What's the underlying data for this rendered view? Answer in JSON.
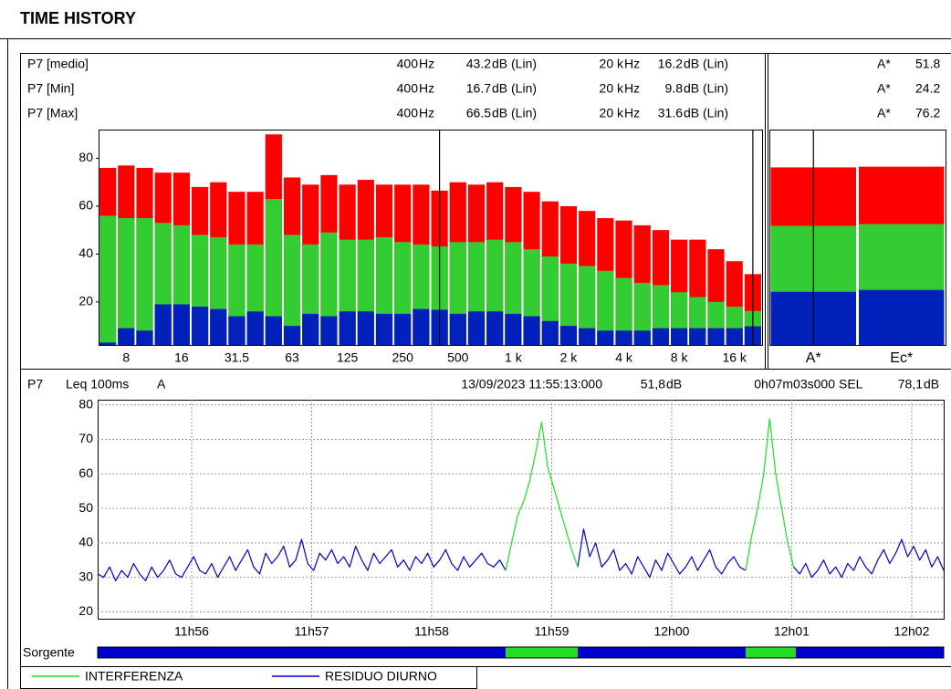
{
  "title": "TIME HISTORY",
  "chart_data": [
    {
      "type": "bar",
      "categories": [
        null,
        "8",
        null,
        null,
        "16",
        null,
        null,
        "31.5",
        null,
        null,
        "63",
        null,
        null,
        "125",
        null,
        null,
        "250",
        null,
        null,
        "500",
        null,
        null,
        "1 k",
        null,
        null,
        "2 k",
        null,
        null,
        "4 k",
        null,
        null,
        "8 k",
        null,
        null,
        "16 k",
        null
      ],
      "series": [
        {
          "name": "P7 [medio]",
          "color": "#33cc33",
          "values": [
            56,
            55,
            55,
            53,
            52,
            48,
            47,
            44,
            44,
            63,
            48,
            44,
            49,
            46,
            46,
            47,
            45,
            44,
            43.2,
            45,
            45,
            46,
            45,
            42,
            39,
            36,
            35,
            33,
            30,
            28,
            27,
            24,
            22,
            20,
            18,
            16.2
          ]
        },
        {
          "name": "P7 [Min]",
          "color": "#0022bb",
          "values": [
            3,
            9,
            8,
            19,
            19,
            18,
            17,
            14,
            16,
            14,
            10,
            15,
            14,
            16,
            16,
            15,
            15,
            17,
            16.7,
            15,
            16,
            16,
            15,
            14,
            12,
            10,
            9,
            8,
            8,
            8,
            9,
            9,
            9,
            9,
            9,
            9.8
          ]
        },
        {
          "name": "P7 [Max]",
          "color": "#ff0000",
          "values": [
            76,
            77,
            76,
            74,
            74,
            68,
            70,
            66,
            66,
            90,
            72,
            69,
            73,
            69,
            71,
            69,
            69,
            69,
            66.5,
            70,
            69,
            70,
            68,
            66,
            62,
            60,
            58,
            55,
            54,
            52,
            50,
            46,
            46,
            42,
            37,
            31.6
          ]
        }
      ],
      "cursors": [
        18,
        35
      ],
      "cursor_labels": [
        {
          "freq": "400",
          "freq_unit": "Hz",
          "level_unit": "dB (Lin)"
        },
        {
          "freq": "20 k",
          "freq_unit": "Hz",
          "level_unit": "dB (Lin)"
        }
      ],
      "ylim": [
        2,
        92
      ],
      "yticks": [
        20,
        40,
        60,
        80
      ]
    },
    {
      "type": "bar",
      "categories": [
        "A*",
        "Ec*"
      ],
      "series": [
        {
          "name": "P7 [medio]",
          "color": "#33cc33",
          "values": [
            51.8,
            52.5
          ]
        },
        {
          "name": "P7 [Min]",
          "color": "#0022bb",
          "values": [
            24.2,
            25
          ]
        },
        {
          "name": "P7 [Max]",
          "color": "#ff0000",
          "values": [
            76.2,
            76.5
          ]
        }
      ],
      "cursors": [
        0
      ],
      "ylim": [
        2,
        92
      ]
    },
    {
      "type": "line",
      "readout": {
        "point": "P7",
        "metric": "Leq 100ms",
        "weighting": "A",
        "start": "13/09/2023 11:55:13:000",
        "leq": "51,8",
        "leq_unit": "dB",
        "duration": "0h07m03s000",
        "sel_label": "SEL",
        "sel": "78,1",
        "sel_unit": "dB"
      },
      "x": [
        42913,
        42916,
        42919,
        42922,
        42925,
        42928,
        42931,
        42934,
        42937,
        42940,
        42943,
        42946,
        42949,
        42952,
        42955,
        42958,
        42961,
        42964,
        42967,
        42970,
        42973,
        42976,
        42979,
        42982,
        42985,
        42988,
        42991,
        42994,
        42997,
        43000,
        43003,
        43006,
        43009,
        43012,
        43015,
        43018,
        43021,
        43024,
        43027,
        43030,
        43033,
        43036,
        43039,
        43042,
        43045,
        43048,
        43051,
        43054,
        43057,
        43060,
        43063,
        43066,
        43069,
        43072,
        43075,
        43078,
        43081,
        43084,
        43087,
        43090,
        43093,
        43096,
        43099,
        43102,
        43105,
        43108,
        43111,
        43114,
        43117,
        43120,
        43123,
        43126,
        43129,
        43132,
        43135,
        43138,
        43141,
        43144,
        43147,
        43150,
        43153,
        43156,
        43159,
        43162,
        43165,
        43168,
        43171,
        43174,
        43177,
        43180,
        43183,
        43186,
        43189,
        43192,
        43195,
        43198,
        43201,
        43204,
        43207,
        43210,
        43213,
        43216,
        43219,
        43222,
        43225,
        43228,
        43231,
        43234,
        43237,
        43240,
        43243,
        43246,
        43249,
        43252,
        43255,
        43258,
        43261,
        43264,
        43267,
        43270,
        43273,
        43276,
        43279,
        43282,
        43285,
        43288,
        43291,
        43294,
        43297,
        43300,
        43303,
        43306,
        43309,
        43312,
        43315,
        43318,
        43321,
        43324,
        43327,
        43330,
        43333,
        43336
      ],
      "series": [
        {
          "name": "INTERFERENZA",
          "color": "#22dd22",
          "values": [
            null,
            null,
            null,
            null,
            null,
            null,
            null,
            null,
            null,
            null,
            null,
            null,
            null,
            null,
            null,
            null,
            null,
            null,
            null,
            null,
            null,
            null,
            null,
            null,
            null,
            null,
            null,
            null,
            null,
            null,
            null,
            null,
            null,
            null,
            null,
            null,
            null,
            null,
            null,
            null,
            null,
            null,
            null,
            null,
            null,
            null,
            null,
            null,
            null,
            null,
            null,
            null,
            null,
            null,
            null,
            null,
            null,
            null,
            null,
            null,
            null,
            null,
            null,
            null,
            null,
            null,
            null,
            null,
            32,
            40,
            48,
            52,
            58,
            66,
            75,
            62,
            56,
            50,
            44,
            38,
            33,
            null,
            null,
            null,
            null,
            null,
            null,
            null,
            null,
            null,
            null,
            null,
            null,
            null,
            null,
            null,
            null,
            null,
            null,
            null,
            null,
            null,
            null,
            null,
            null,
            null,
            null,
            null,
            32,
            42,
            50,
            60,
            76,
            60,
            50,
            40,
            33,
            null,
            null,
            null,
            null,
            null,
            null,
            null,
            null,
            null,
            null,
            null,
            null,
            null,
            null,
            null,
            null,
            null,
            null,
            null,
            null,
            null,
            null,
            null,
            null,
            null
          ]
        },
        {
          "name": "RESIDUO DIURNO",
          "color": "#0000cc",
          "values": [
            31,
            30,
            33,
            29,
            32,
            30,
            34,
            31,
            29,
            33,
            30,
            32,
            35,
            31,
            30,
            33,
            36,
            32,
            31,
            34,
            30,
            33,
            36,
            32,
            35,
            38,
            33,
            31,
            37,
            34,
            36,
            39,
            33,
            35,
            41,
            34,
            32,
            37,
            35,
            38,
            34,
            36,
            33,
            39,
            35,
            32,
            37,
            34,
            36,
            38,
            33,
            35,
            32,
            36,
            34,
            37,
            33,
            35,
            38,
            34,
            32,
            36,
            33,
            35,
            37,
            34,
            33,
            35,
            32,
            null,
            null,
            null,
            null,
            null,
            null,
            null,
            null,
            null,
            null,
            null,
            33,
            44,
            36,
            40,
            33,
            35,
            38,
            32,
            34,
            31,
            36,
            33,
            30,
            35,
            32,
            37,
            34,
            31,
            33,
            36,
            32,
            35,
            38,
            33,
            31,
            34,
            36,
            33,
            32,
            null,
            null,
            null,
            null,
            null,
            null,
            null,
            33,
            31,
            34,
            30,
            32,
            35,
            31,
            33,
            30,
            34,
            32,
            36,
            33,
            31,
            35,
            38,
            34,
            37,
            41,
            36,
            39,
            35,
            38,
            33,
            36,
            32
          ]
        }
      ],
      "xlim": [
        42913,
        43336
      ],
      "xticks": [
        {
          "value": 42960,
          "label": "11h56"
        },
        {
          "value": 43020,
          "label": "11h57"
        },
        {
          "value": 43080,
          "label": "11h58"
        },
        {
          "value": 43140,
          "label": "11h59"
        },
        {
          "value": 43200,
          "label": "12h00"
        },
        {
          "value": 43260,
          "label": "12h01"
        },
        {
          "value": 43320,
          "label": "12h02"
        }
      ],
      "ylim": [
        18,
        81.5
      ],
      "yticks": [
        20,
        30,
        40,
        50,
        60,
        70,
        80
      ],
      "grid": true,
      "sorgente": {
        "label": "Sorgente",
        "segments": [
          {
            "start": 42913,
            "end": 43117,
            "series": 1
          },
          {
            "start": 43117,
            "end": 43153,
            "series": 0
          },
          {
            "start": 43153,
            "end": 43237,
            "series": 1
          },
          {
            "start": 43237,
            "end": 43262,
            "series": 0
          },
          {
            "start": 43262,
            "end": 43336,
            "series": 1
          }
        ]
      }
    }
  ]
}
